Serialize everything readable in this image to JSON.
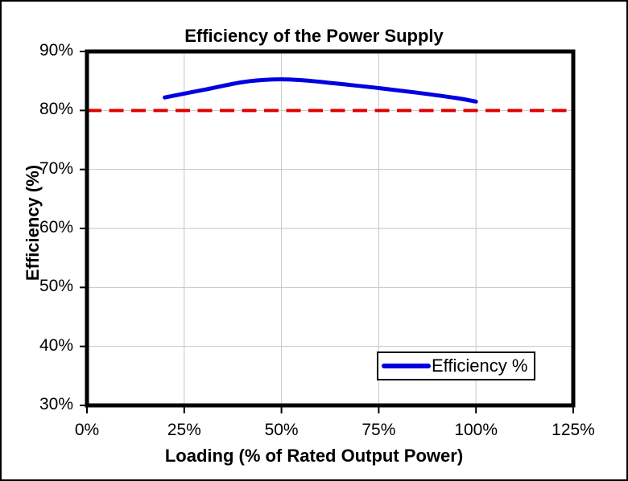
{
  "chart_data": {
    "type": "line",
    "title": "Efficiency of the Power Supply",
    "xlabel": "Loading (% of Rated Output Power)",
    "ylabel": "Efficiency (%)",
    "xlim": [
      0,
      125
    ],
    "ylim": [
      30,
      90
    ],
    "x_ticks": [
      0,
      25,
      50,
      75,
      100,
      125
    ],
    "x_tick_labels": [
      "0%",
      "25%",
      "50%",
      "75%",
      "100%",
      "125%"
    ],
    "y_ticks": [
      30,
      40,
      50,
      60,
      70,
      80,
      90
    ],
    "y_tick_labels": [
      "30%",
      "40%",
      "50%",
      "60%",
      "70%",
      "80%",
      "90%"
    ],
    "grid": true,
    "legend": {
      "position": "bottom-right-inside",
      "entries": [
        {
          "label": "Efficiency %",
          "color": "#0000e0",
          "style": "solid"
        }
      ]
    },
    "series": [
      {
        "name": "Efficiency %",
        "shape": "smooth",
        "color": "#0000e0",
        "stroke_width": 5,
        "points": [
          [
            20,
            82.2
          ],
          [
            30,
            83.5
          ],
          [
            40,
            84.8
          ],
          [
            48,
            85.25
          ],
          [
            55,
            85.15
          ],
          [
            65,
            84.5
          ],
          [
            75,
            83.8
          ],
          [
            85,
            83.0
          ],
          [
            95,
            82.1
          ],
          [
            100,
            81.5
          ]
        ]
      }
    ],
    "reference_line": {
      "y": 80,
      "color": "#e00000",
      "style": "dashed",
      "stroke_width": 4
    },
    "colors": {
      "gridline": "#c6c6c6",
      "axis_border": "#000000",
      "plot_background": "#ffffff",
      "canvas_background": "#ffffff",
      "canvas_border": "#000000",
      "text": "#000000"
    }
  }
}
